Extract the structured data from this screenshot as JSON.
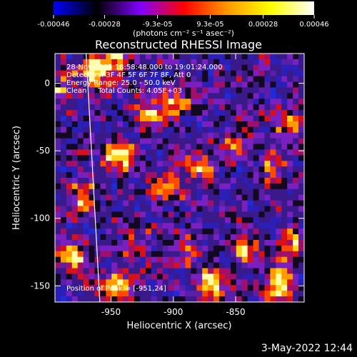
{
  "chart_data": {
    "type": "heatmap",
    "title": "Reconstructed RHESSI Image",
    "xlabel": "Heliocentric X (arcsec)",
    "ylabel": "Heliocentric Y (arcsec)",
    "xlim": [
      -995,
      -795
    ],
    "ylim": [
      -162,
      22
    ],
    "x_ticks": [
      -950,
      -900,
      -850
    ],
    "y_ticks": [
      0,
      -50,
      -100,
      -150
    ],
    "x_tick_labels": [
      "-950",
      "-900",
      "-850"
    ],
    "y_tick_labels": [
      "0",
      "-50",
      "-100",
      "-150"
    ],
    "colorbar": {
      "ticks": [
        -0.00046,
        -0.00028,
        -9.3e-05,
        9.3e-05,
        0.00028,
        0.00046
      ],
      "tick_labels": [
        "-0.00046",
        "-0.00028",
        "-9.3e-05",
        "9.3e-05",
        "0.00028",
        "0.00046"
      ],
      "min": -0.00046,
      "max": 0.00046,
      "colors": [
        "#0000ff",
        "#000000",
        "#8000ff",
        "#ff0000",
        "#ff9900",
        "#ffff00",
        "#ffffff"
      ]
    },
    "colorbar_units": "(photons cm⁻² s⁻¹ asec⁻²)",
    "annotations": [
      "28-Nov-2005 18:58:48.000 to 19:01:24.000",
      "Detectors: 3F 4F 5F 6F 7F 8F, Att 0",
      "Energy Range: 25.0 - 50.0 keV",
      "Clean     Total Counts: 4.05E+03"
    ],
    "peak_label": "Position of Peak = [-951,24]",
    "limb_line": [
      [
        -970,
        22
      ],
      [
        -959,
        -162
      ]
    ],
    "hotspots": [
      {
        "x": -962,
        "y": 10,
        "intensity": 0.9
      },
      {
        "x": -946,
        "y": 20,
        "intensity": 0.8
      },
      {
        "x": -944,
        "y": -55,
        "intensity": 0.95
      },
      {
        "x": -972,
        "y": -85,
        "intensity": 0.75
      },
      {
        "x": -918,
        "y": -22,
        "intensity": 0.6
      },
      {
        "x": -897,
        "y": -15,
        "intensity": 0.55
      },
      {
        "x": -905,
        "y": -75,
        "intensity": 0.65
      },
      {
        "x": -878,
        "y": -60,
        "intensity": 0.6
      },
      {
        "x": -852,
        "y": -45,
        "intensity": 0.55
      },
      {
        "x": -822,
        "y": -62,
        "intensity": 0.55
      },
      {
        "x": -808,
        "y": -30,
        "intensity": 0.5
      },
      {
        "x": -808,
        "y": -118,
        "intensity": 0.7
      },
      {
        "x": -930,
        "y": -118,
        "intensity": 0.5
      },
      {
        "x": -982,
        "y": -130,
        "intensity": 0.85
      },
      {
        "x": -945,
        "y": -150,
        "intensity": 0.8
      },
      {
        "x": -870,
        "y": -150,
        "intensity": 0.85
      },
      {
        "x": -840,
        "y": -125,
        "intensity": 0.65
      },
      {
        "x": -815,
        "y": -150,
        "intensity": 0.9
      },
      {
        "x": -890,
        "y": -120,
        "intensity": 0.55
      },
      {
        "x": -988,
        "y": 0,
        "intensity": 0.6
      }
    ]
  },
  "footer": {
    "timestamp": "3-May-2022 12:44"
  }
}
